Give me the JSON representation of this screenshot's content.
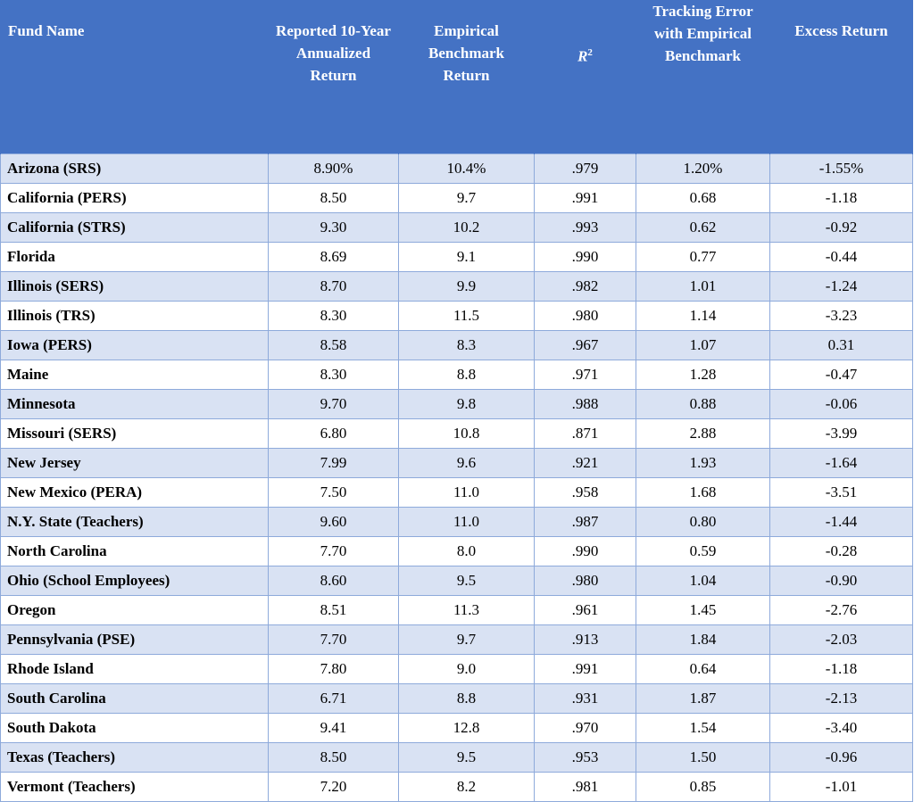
{
  "table": {
    "headers": [
      "Fund Name",
      "Reported 10-Year Annualized Return",
      "Empirical Benchmark Return",
      "R",
      "Tracking Error with Empirical Benchmark",
      "Excess Return"
    ],
    "r2_superscript": "2",
    "rows": [
      [
        "Arizona (SRS)",
        "8.90%",
        "10.4%",
        ".979",
        "1.20%",
        "-1.55%"
      ],
      [
        "California (PERS)",
        "8.50",
        "9.7",
        ".991",
        "0.68",
        "-1.18"
      ],
      [
        "California (STRS)",
        "9.30",
        "10.2",
        ".993",
        "0.62",
        "-0.92"
      ],
      [
        "Florida",
        "8.69",
        "9.1",
        ".990",
        "0.77",
        "-0.44"
      ],
      [
        "Illinois (SERS)",
        "8.70",
        "9.9",
        ".982",
        "1.01",
        "-1.24"
      ],
      [
        "Illinois (TRS)",
        "8.30",
        "11.5",
        ".980",
        "1.14",
        "-3.23"
      ],
      [
        "Iowa (PERS)",
        "8.58",
        "8.3",
        ".967",
        "1.07",
        "0.31"
      ],
      [
        "Maine",
        "8.30",
        "8.8",
        ".971",
        "1.28",
        "-0.47"
      ],
      [
        "Minnesota",
        "9.70",
        "9.8",
        ".988",
        "0.88",
        "-0.06"
      ],
      [
        "Missouri (SERS)",
        "6.80",
        "10.8",
        ".871",
        "2.88",
        "-3.99"
      ],
      [
        "New Jersey",
        "7.99",
        "9.6",
        ".921",
        "1.93",
        "-1.64"
      ],
      [
        "New Mexico (PERA)",
        "7.50",
        "11.0",
        ".958",
        "1.68",
        "-3.51"
      ],
      [
        "N.Y. State (Teachers)",
        "9.60",
        "11.0",
        ".987",
        "0.80",
        "-1.44"
      ],
      [
        "North Carolina",
        "7.70",
        "8.0",
        ".990",
        "0.59",
        "-0.28"
      ],
      [
        "Ohio (School Employees)",
        "8.60",
        "9.5",
        ".980",
        "1.04",
        "-0.90"
      ],
      [
        "Oregon",
        "8.51",
        "11.3",
        ".961",
        "1.45",
        "-2.76"
      ],
      [
        "Pennsylvania (PSE)",
        "7.70",
        "9.7",
        ".913",
        "1.84",
        "-2.03"
      ],
      [
        "Rhode Island",
        "7.80",
        "9.0",
        ".991",
        "0.64",
        "-1.18"
      ],
      [
        "South Carolina",
        "6.71",
        "8.8",
        ".931",
        "1.87",
        "-2.13"
      ],
      [
        "South Dakota",
        "9.41",
        "12.8",
        ".970",
        "1.54",
        "-3.40"
      ],
      [
        "Texas (Teachers)",
        "8.50",
        "9.5",
        ".953",
        "1.50",
        "-0.96"
      ],
      [
        "Vermont (Teachers)",
        "7.20",
        "8.2",
        ".981",
        "0.85",
        "-1.01"
      ]
    ],
    "colors": {
      "header_bg": "#4472c4",
      "header_text": "#ffffff",
      "row_shade": "#d9e2f3",
      "row_plain": "#ffffff",
      "grid": "#8eaadb"
    }
  }
}
